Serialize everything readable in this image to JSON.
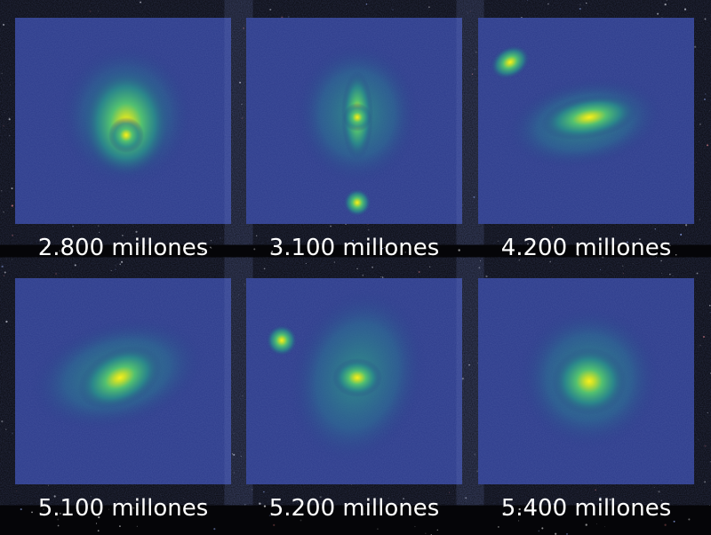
{
  "panels": [
    {
      "label": "2.800 millones"
    },
    {
      "label": "3.100 millones"
    },
    {
      "label": "4.200 millones"
    },
    {
      "label": "5.100 millones"
    },
    {
      "label": "5.200 millones"
    },
    {
      "label": "5.400 millones"
    }
  ]
}
